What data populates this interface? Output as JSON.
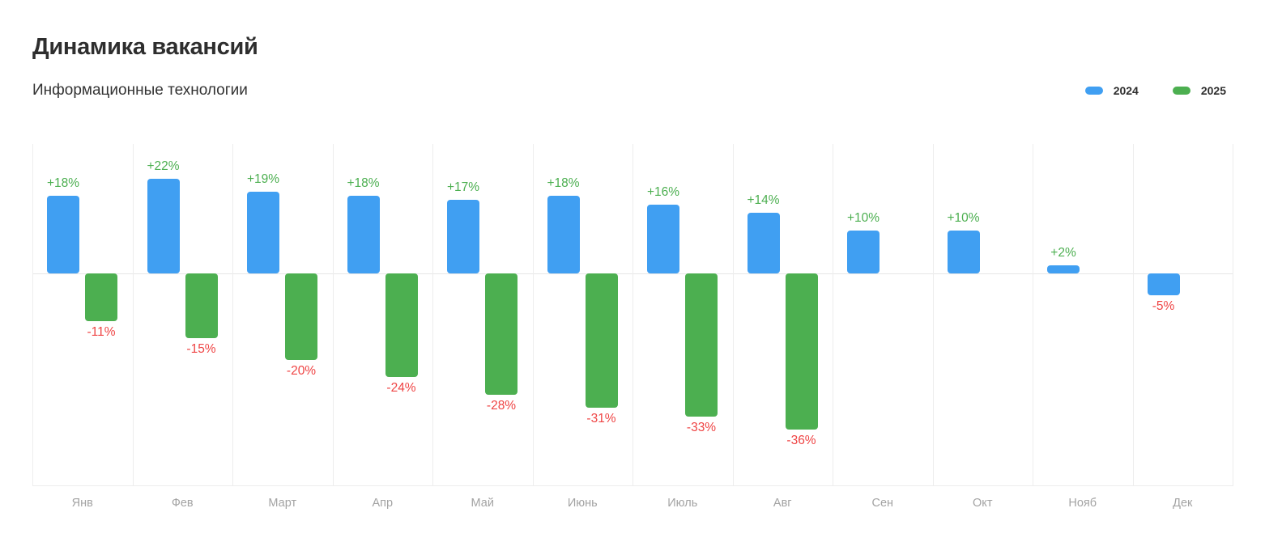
{
  "page": {
    "title": "Динамика вакансий",
    "subtitle": "Информационные технологии"
  },
  "legend": {
    "items": [
      {
        "label": "2024",
        "color": "#409ff2"
      },
      {
        "label": "2025",
        "color": "#4caf50"
      }
    ]
  },
  "chart_data": {
    "type": "bar",
    "title": "Динамика вакансий",
    "subtitle": "Информационные технологии",
    "categories": [
      "Янв",
      "Фев",
      "Март",
      "Апр",
      "Май",
      "Июнь",
      "Июль",
      "Авг",
      "Сен",
      "Окт",
      "Нояб",
      "Дек"
    ],
    "series": [
      {
        "name": "2024",
        "color": "#409ff2",
        "values": [
          18,
          22,
          19,
          18,
          17,
          18,
          16,
          14,
          10,
          10,
          2,
          -5
        ]
      },
      {
        "name": "2025",
        "color": "#4caf50",
        "values": [
          -11,
          -15,
          -20,
          -24,
          -28,
          -31,
          -33,
          -36,
          null,
          null,
          null,
          null
        ]
      }
    ],
    "data_labels": {
      "format": "signed_percent",
      "positive_color": "#4caf50",
      "negative_color": "#ef4444"
    },
    "xlabel": "",
    "ylabel": "",
    "ylim": [
      -49,
      30
    ],
    "grid": "vertical-only",
    "legend_position": "top-right"
  }
}
